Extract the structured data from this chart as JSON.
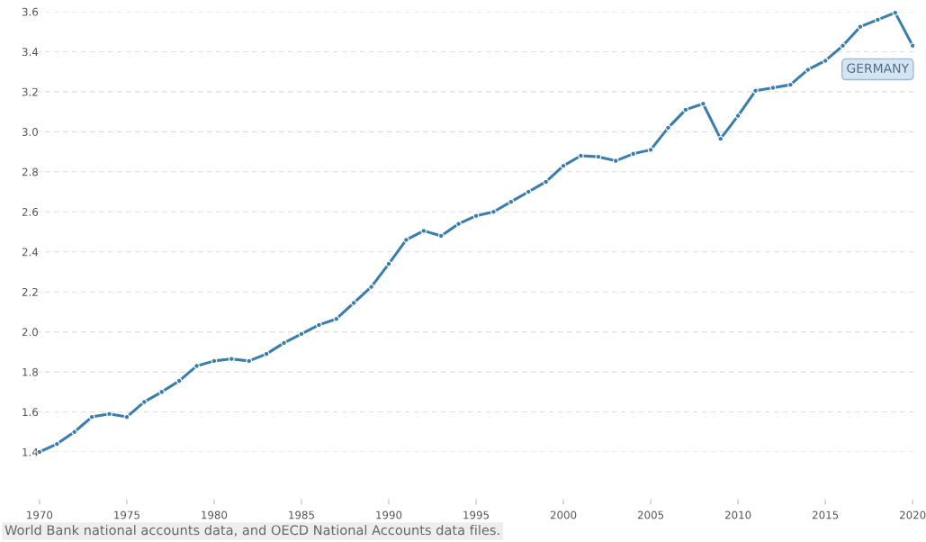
{
  "chart_data": {
    "type": "line",
    "x": [
      1970,
      1971,
      1972,
      1973,
      1974,
      1975,
      1976,
      1977,
      1978,
      1979,
      1980,
      1981,
      1982,
      1983,
      1984,
      1985,
      1986,
      1987,
      1988,
      1989,
      1990,
      1991,
      1992,
      1993,
      1994,
      1995,
      1996,
      1997,
      1998,
      1999,
      2000,
      2001,
      2002,
      2003,
      2004,
      2005,
      2006,
      2007,
      2008,
      2009,
      2010,
      2011,
      2012,
      2013,
      2014,
      2015,
      2016,
      2017,
      2018,
      2019,
      2020
    ],
    "series": [
      {
        "name": "GERMANY",
        "color": "#3b7dab",
        "values": [
          1.4,
          1.44,
          1.5,
          1.575,
          1.59,
          1.575,
          1.65,
          1.7,
          1.755,
          1.83,
          1.855,
          1.865,
          1.855,
          1.89,
          1.945,
          1.99,
          2.035,
          2.065,
          2.145,
          2.225,
          2.34,
          2.46,
          2.505,
          2.48,
          2.54,
          2.58,
          2.6,
          2.65,
          2.7,
          2.75,
          2.83,
          2.88,
          2.875,
          2.855,
          2.89,
          2.91,
          3.02,
          3.11,
          3.14,
          2.965,
          3.08,
          3.205,
          3.22,
          3.235,
          3.31,
          3.355,
          3.43,
          3.525,
          3.56,
          3.595,
          3.43
        ]
      }
    ],
    "xlim": [
      1969.8,
      2020.3
    ],
    "xticks": [
      1970,
      1975,
      1980,
      1985,
      1990,
      1995,
      2000,
      2005,
      2010,
      2015,
      2020
    ],
    "ylim": [
      1.4,
      3.6
    ],
    "yticks": [
      1.4,
      1.6,
      1.8,
      {
        "value": 2,
        "label": "2.0"
      },
      2.2,
      2.4,
      2.6,
      2.8,
      {
        "value": 3,
        "label": "3.0"
      },
      3.2,
      3.4,
      3.6
    ],
    "grid": "y",
    "marker": "circle",
    "line_style": "solid",
    "annotations": [
      "World Bank national accounts data, and OECD National Accounts data files."
    ]
  }
}
